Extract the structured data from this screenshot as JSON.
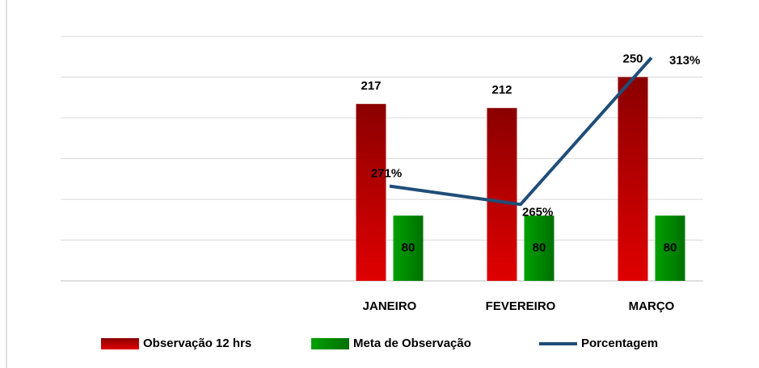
{
  "chart_data": {
    "type": "bar",
    "categories": [
      null,
      null,
      "JANEIRO",
      "FEVEREIRO",
      "MARÇO"
    ],
    "series": [
      {
        "name": "Observação 12 hrs",
        "color": "#e00000",
        "type": "bar",
        "values": [
          null,
          null,
          217,
          212,
          250
        ]
      },
      {
        "name": "Meta de Observação",
        "color": "#00a000",
        "type": "bar",
        "values": [
          null,
          null,
          80,
          80,
          80
        ]
      },
      {
        "name": "Porcentagem",
        "color": "#1f4e79",
        "type": "line",
        "axis": "y2",
        "values": [
          null,
          null,
          271,
          265,
          313
        ],
        "value_labels": [
          null,
          null,
          "271%",
          "265%",
          "313%"
        ]
      }
    ],
    "ylim": [
      0,
      300
    ],
    "yticks": [
      0,
      50,
      100,
      150,
      200,
      250,
      300
    ],
    "y2lim": [
      240,
      320
    ],
    "grid": true,
    "legend": "bottom"
  }
}
